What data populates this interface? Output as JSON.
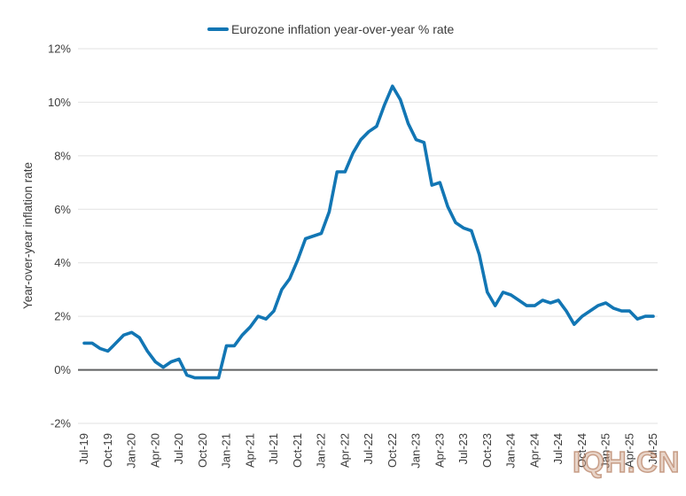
{
  "legend": {
    "label": "Eurozone inflation year-over-year % rate"
  },
  "watermark": {
    "text": "IQH.CN"
  },
  "chart_data": {
    "type": "line",
    "series_name": "Eurozone inflation year-over-year % rate",
    "x_start": "Jul-19",
    "x_end": "Jul-25",
    "frequency": "monthly",
    "x_tick_labels": [
      "Jul-19",
      "Oct-19",
      "Jan-20",
      "Apr-20",
      "Jul-20",
      "Oct-20",
      "Jan-21",
      "Apr-21",
      "Jul-21",
      "Oct-21",
      "Jan-22",
      "Apr-22",
      "Jul-22",
      "Oct-22",
      "Jan-23",
      "Apr-23",
      "Jul-23",
      "Oct-23",
      "Jan-24",
      "Apr-24",
      "Jul-24",
      "Oct-24",
      "Jan-25",
      "Apr-25",
      "Jul-25"
    ],
    "x_tick_every": 3,
    "values": [
      1.0,
      1.0,
      0.8,
      0.7,
      1.0,
      1.3,
      1.4,
      1.2,
      0.7,
      0.3,
      0.1,
      0.3,
      0.4,
      -0.2,
      -0.3,
      -0.3,
      -0.3,
      -0.3,
      0.9,
      0.9,
      1.3,
      1.6,
      2.0,
      1.9,
      2.2,
      3.0,
      3.4,
      4.1,
      4.9,
      5.0,
      5.1,
      5.9,
      7.4,
      7.4,
      8.1,
      8.6,
      8.9,
      9.1,
      9.9,
      10.6,
      10.1,
      9.2,
      8.6,
      8.5,
      6.9,
      7.0,
      6.1,
      5.5,
      5.3,
      5.2,
      4.3,
      2.9,
      2.4,
      2.9,
      2.8,
      2.6,
      2.4,
      2.4,
      2.6,
      2.5,
      2.6,
      2.2,
      1.7,
      2.0,
      2.2,
      2.4,
      2.5,
      2.3,
      2.2,
      2.2,
      1.9,
      2.0,
      2.0
    ],
    "title": "",
    "xlabel": "",
    "ylabel": "Year-over-year inflation rate",
    "ylim": [
      -2,
      12
    ],
    "y_ticks": [
      -2,
      0,
      2,
      4,
      6,
      8,
      10,
      12
    ],
    "y_tick_format": "{v}%",
    "grid": "horizontal",
    "zero_line": true,
    "legend_position": "top-center",
    "line_color": "#1276b4",
    "grid_color": "#e2e2e2",
    "zero_line_color": "#5f6062",
    "text_color": "#3d3d3d"
  }
}
